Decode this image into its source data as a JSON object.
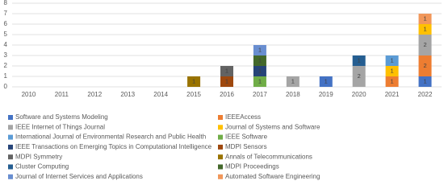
{
  "chart_data": {
    "type": "stacked_bar",
    "categories": [
      "2010",
      "2011",
      "2012",
      "2013",
      "2014",
      "2015",
      "2016",
      "2017",
      "2018",
      "2019",
      "2020",
      "2021",
      "2022"
    ],
    "ylim": [
      0,
      8
    ],
    "yticks": [
      0,
      1,
      2,
      3,
      4,
      5,
      6,
      7,
      8
    ],
    "grid": true,
    "series": [
      {
        "name": "Software and Systems Modeling",
        "color": "#4472c4",
        "values": [
          null,
          null,
          null,
          null,
          null,
          null,
          null,
          null,
          null,
          1,
          null,
          null,
          1
        ]
      },
      {
        "name": "IEEEAccess",
        "color": "#ed7d31",
        "values": [
          null,
          null,
          null,
          null,
          null,
          null,
          null,
          null,
          null,
          null,
          null,
          1,
          2
        ]
      },
      {
        "name": "IEEE Internet of Things Journal",
        "color": "#a5a5a5",
        "values": [
          null,
          null,
          null,
          null,
          null,
          null,
          null,
          null,
          1,
          null,
          2,
          null,
          2
        ]
      },
      {
        "name": "Journal of Systems and Software",
        "color": "#ffc000",
        "values": [
          null,
          null,
          null,
          null,
          null,
          null,
          null,
          null,
          null,
          null,
          null,
          1,
          1
        ]
      },
      {
        "name": "International Journal of Environmental Research and Public Health",
        "color": "#5b9bd5",
        "values": [
          null,
          null,
          null,
          null,
          null,
          null,
          null,
          null,
          null,
          null,
          null,
          1,
          null
        ]
      },
      {
        "name": "IEEE Software",
        "color": "#70ad47",
        "values": [
          null,
          null,
          null,
          null,
          null,
          null,
          null,
          1,
          null,
          null,
          null,
          null,
          null
        ]
      },
      {
        "name": "IEEE Transactions on Emerging Topics in Computational Intelligence",
        "color": "#264478",
        "values": [
          null,
          null,
          null,
          null,
          null,
          null,
          null,
          1,
          null,
          null,
          null,
          null,
          null
        ]
      },
      {
        "name": "MDPI Sensors",
        "color": "#9e480e",
        "values": [
          null,
          null,
          null,
          null,
          null,
          null,
          1,
          null,
          null,
          null,
          null,
          null,
          null
        ]
      },
      {
        "name": "MDPI Symmetry",
        "color": "#636363",
        "values": [
          null,
          null,
          null,
          null,
          null,
          null,
          1,
          null,
          null,
          null,
          null,
          null,
          null
        ]
      },
      {
        "name": "Annals of Telecommunications",
        "color": "#997300",
        "values": [
          null,
          null,
          null,
          null,
          null,
          1,
          null,
          null,
          null,
          null,
          null,
          null,
          null
        ]
      },
      {
        "name": "Cluster Computing",
        "color": "#255e91",
        "values": [
          null,
          null,
          null,
          null,
          null,
          null,
          null,
          null,
          null,
          null,
          1,
          null,
          null
        ]
      },
      {
        "name": "MDPI Proceedings",
        "color": "#43682b",
        "values": [
          null,
          null,
          null,
          null,
          null,
          null,
          null,
          1,
          null,
          null,
          null,
          null,
          null
        ]
      },
      {
        "name": "Journal of Internet Services and Applications",
        "color": "#698ed0",
        "values": [
          null,
          null,
          null,
          null,
          null,
          null,
          null,
          1,
          null,
          null,
          null,
          null,
          null
        ]
      },
      {
        "name": "Automated Software Engineering",
        "color": "#f1975a",
        "values": [
          null,
          null,
          null,
          null,
          null,
          null,
          null,
          null,
          null,
          null,
          null,
          null,
          1
        ]
      }
    ]
  }
}
